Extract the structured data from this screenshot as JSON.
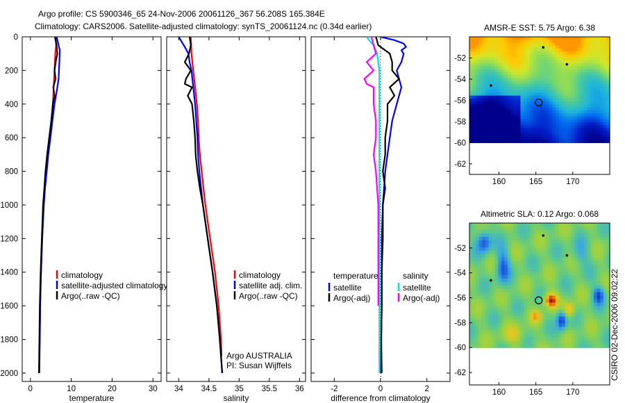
{
  "header": {
    "line1": "Argo profile: CS 5900346_65 24-Nov-2006 20061126_367 56.208S 165.384E",
    "line2": "Climatology: CARS2006. Satellite-adjusted climatology: synTS_20061124.nc (0.34d earlier)"
  },
  "stamp": "CSIRO 02-Dec-2006 09:02:22",
  "colors": {
    "red": "#ff0000",
    "blue": "#0000ff",
    "black": "#000000",
    "cyan": "#00e0e0",
    "magenta": "#ff00ff"
  },
  "chart_data": [
    {
      "type": "line",
      "panel": "temperature",
      "xlabel": "temperature",
      "xlim": [
        -2,
        32
      ],
      "xticks": [
        0,
        10,
        20,
        30
      ],
      "ylim": [
        0,
        2050
      ],
      "yticks": [
        0,
        200,
        400,
        600,
        800,
        1000,
        1200,
        1400,
        1600,
        1800,
        2000
      ],
      "legend": [
        {
          "label": "climatology",
          "color": "red"
        },
        {
          "label": "satellite-adjusted climatology",
          "color": "blue"
        },
        {
          "label": "Argo(..raw -QC)",
          "color": "black"
        }
      ],
      "series": [
        {
          "name": "climatology",
          "color": "red",
          "depth": [
            0,
            50,
            100,
            200,
            300,
            400,
            500,
            600,
            700,
            800,
            900,
            1000,
            1200,
            1400,
            1600,
            1800,
            1900
          ],
          "values": [
            6.2,
            6.3,
            6.1,
            5.9,
            5.7,
            5.5,
            5.2,
            4.7,
            4.2,
            3.8,
            3.5,
            3.2,
            2.9,
            2.6,
            2.4,
            2.3,
            2.2
          ]
        },
        {
          "name": "satellite-adjusted climatology",
          "color": "blue",
          "depth": [
            0,
            40,
            80,
            150,
            250,
            300,
            400,
            500,
            600,
            700,
            800,
            900,
            1000,
            1200,
            1400,
            1600,
            1800,
            2000
          ],
          "values": [
            6.4,
            6.8,
            7.2,
            7.1,
            6.9,
            6.6,
            5.9,
            5.4,
            4.9,
            4.4,
            4.0,
            3.6,
            3.3,
            2.9,
            2.6,
            2.4,
            2.3,
            2.2
          ]
        },
        {
          "name": "Argo(..raw -QC)",
          "color": "black",
          "depth": [
            0,
            50,
            100,
            150,
            200,
            250,
            300,
            350,
            400,
            500,
            600,
            700,
            800,
            900,
            1000,
            1200,
            1400,
            1600,
            1800,
            2000
          ],
          "values": [
            6.0,
            6.4,
            6.6,
            6.2,
            5.9,
            6.2,
            5.6,
            5.9,
            5.5,
            5.1,
            4.6,
            4.1,
            3.7,
            3.4,
            3.1,
            2.8,
            2.5,
            2.3,
            2.2,
            2.1
          ]
        }
      ]
    },
    {
      "type": "line",
      "panel": "salinity",
      "xlabel": "salinity",
      "xlim": [
        33.8,
        36.1
      ],
      "xticks": [
        34,
        34.5,
        35,
        35.5,
        36
      ],
      "ylim": [
        0,
        2050
      ],
      "legend": [
        {
          "label": "climatology",
          "color": "red"
        },
        {
          "label": "satellite adj. clim.",
          "color": "blue"
        },
        {
          "label": "Argo(..raw -QC)",
          "color": "black"
        }
      ],
      "annotations": [
        "Argo AUSTRALIA",
        "PI: Susan Wijffels"
      ],
      "series": [
        {
          "name": "climatology",
          "color": "red",
          "depth": [
            0,
            100,
            200,
            300,
            400,
            500,
            600,
            700,
            800,
            900,
            1000,
            1100,
            1200,
            1300,
            1400,
            1500,
            1600,
            1700,
            1800,
            1900
          ],
          "values": [
            34.2,
            34.21,
            34.24,
            34.27,
            34.3,
            34.32,
            34.33,
            34.35,
            34.38,
            34.41,
            34.44,
            34.48,
            34.52,
            34.56,
            34.6,
            34.63,
            34.66,
            34.68,
            34.7,
            34.71
          ]
        },
        {
          "name": "satellite adj. clim.",
          "color": "blue",
          "depth": [
            0,
            30,
            60,
            100,
            150,
            200,
            300,
            400,
            500,
            600,
            700,
            800,
            900,
            1000,
            1200,
            1400,
            1600,
            1800,
            2000
          ],
          "values": [
            34.0,
            34.05,
            34.1,
            34.16,
            34.18,
            34.21,
            34.24,
            34.27,
            34.29,
            34.31,
            34.32,
            34.34,
            34.37,
            34.4,
            34.48,
            34.56,
            34.63,
            34.68,
            34.72
          ]
        },
        {
          "name": "Argo(..raw -QC)",
          "color": "black",
          "depth": [
            0,
            50,
            100,
            150,
            200,
            250,
            280,
            300,
            350,
            400,
            500,
            600,
            700,
            800,
            850,
            900,
            1000,
            1200,
            1400,
            1600,
            1800,
            2000
          ],
          "values": [
            34.18,
            34.2,
            34.17,
            34.1,
            34.2,
            34.12,
            34.1,
            34.22,
            34.15,
            34.22,
            34.25,
            34.27,
            34.28,
            34.31,
            34.33,
            34.35,
            34.4,
            34.48,
            34.56,
            34.63,
            34.68,
            34.72
          ]
        }
      ]
    },
    {
      "type": "line",
      "panel": "difference",
      "xlabel": "difference from climatology",
      "xlim": [
        -3,
        3
      ],
      "xticks": [
        -2,
        0,
        2
      ],
      "ylim": [
        0,
        2050
      ],
      "legend": [
        {
          "label": "temperature",
          "color": "none"
        },
        {
          "label": "satellite",
          "color": "blue"
        },
        {
          "label": "Argo(-adj)",
          "color": "black"
        },
        {
          "label": "salinity",
          "color": "none"
        },
        {
          "label": "satellite",
          "color": "cyan"
        },
        {
          "label": "Argo(-adj)",
          "color": "magenta"
        }
      ],
      "series": [
        {
          "name": "temperature satellite",
          "color": "blue",
          "depth": [
            0,
            20,
            40,
            60,
            80,
            100,
            150,
            200,
            300,
            400,
            500,
            600,
            700,
            800,
            1000,
            1200,
            1400,
            1600,
            1800,
            2000
          ],
          "values": [
            0.0,
            0.6,
            1.0,
            1.1,
            0.9,
            1.0,
            0.9,
            0.7,
            0.9,
            0.7,
            0.5,
            0.4,
            0.3,
            0.2,
            0.1,
            0.05,
            0.05,
            0.05,
            0.03,
            0.02
          ]
        },
        {
          "name": "temperature Argo(-adj)",
          "color": "black",
          "depth": [
            0,
            50,
            100,
            150,
            200,
            250,
            300,
            350,
            400,
            500,
            600,
            700,
            800,
            900,
            1000,
            1200,
            1400,
            1600,
            1800,
            2000
          ],
          "values": [
            -0.2,
            -0.1,
            0.4,
            0.5,
            0.5,
            0.8,
            0.4,
            0.6,
            0.3,
            0.3,
            0.2,
            0.2,
            0.1,
            0.2,
            0.1,
            0.1,
            0.05,
            0.05,
            0.03,
            0.05
          ]
        },
        {
          "name": "salinity satellite",
          "color": "cyan",
          "depth": [
            0,
            20,
            50,
            80,
            100,
            150,
            200,
            300,
            400,
            500,
            600,
            800,
            1000,
            1200,
            1400,
            1600,
            1800,
            2000
          ],
          "values": [
            -0.6,
            -0.5,
            -0.3,
            -0.2,
            -0.15,
            -0.1,
            -0.05,
            -0.05,
            -0.05,
            -0.05,
            -0.05,
            -0.05,
            -0.05,
            -0.05,
            -0.05,
            -0.05,
            -0.05,
            -0.05
          ]
        },
        {
          "name": "salinity Argo(-adj)",
          "color": "magenta",
          "depth": [
            0,
            100,
            150,
            200,
            250,
            280,
            300,
            400,
            500,
            600,
            700,
            800,
            1000,
            1200,
            1400,
            1600
          ],
          "values": [
            -0.4,
            -0.2,
            -0.6,
            -0.3,
            -0.7,
            -0.6,
            -0.3,
            -0.3,
            -0.2,
            -0.2,
            -0.3,
            -0.2,
            -0.1,
            -0.1,
            -0.1,
            -0.1
          ]
        }
      ]
    },
    {
      "type": "heatmap",
      "panel": "sst_map",
      "title": "AMSR-E SST: 5.75 Argo: 6.38",
      "xlim": [
        156,
        175
      ],
      "xticks": [
        160,
        165,
        170
      ],
      "ylim": [
        -63,
        -50
      ],
      "yticks": [
        -52,
        -54,
        -56,
        -58,
        -60,
        -62
      ],
      "data_lat_range": [
        -60,
        -50
      ],
      "marker": {
        "lon": 165.384,
        "lat": -56.208
      }
    },
    {
      "type": "heatmap",
      "panel": "sla_map",
      "title": "Altimetric SLA: 0.12 Argo: 0.068",
      "xlim": [
        156,
        175
      ],
      "xticks": [
        160,
        165,
        170
      ],
      "ylim": [
        -63,
        -50
      ],
      "yticks": [
        -52,
        -54,
        -56,
        -58,
        -60,
        -62
      ],
      "data_lat_range": [
        -60,
        -50
      ],
      "marker": {
        "lon": 165.384,
        "lat": -56.208
      }
    }
  ]
}
